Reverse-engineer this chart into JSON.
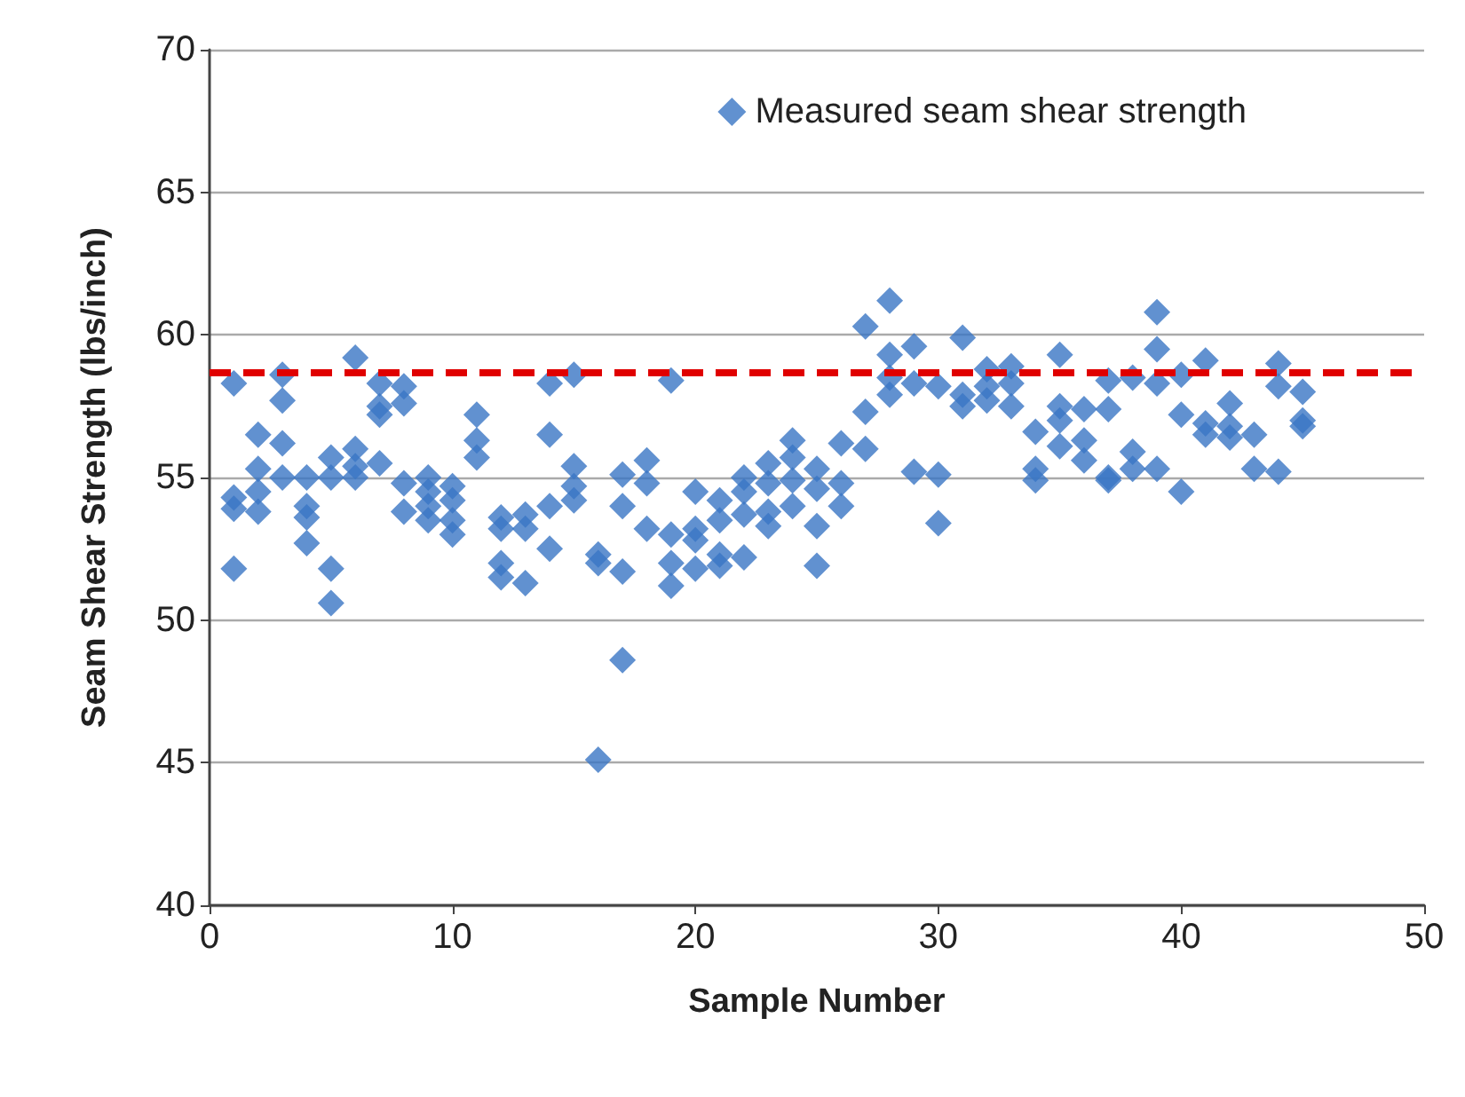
{
  "chart_data": {
    "type": "scatter",
    "xlabel": "Sample Number",
    "ylabel": "Seam Shear Strength (lbs/inch)",
    "xlim": [
      0,
      50
    ],
    "xticks": [
      0,
      10,
      20,
      30,
      40,
      50
    ],
    "ylim": [
      40,
      70
    ],
    "yticks": [
      40,
      45,
      50,
      55,
      60,
      65,
      70
    ],
    "grid": "y",
    "legend": "top right",
    "marker": "diamond",
    "series": [
      {
        "name": "Measured seam shear strength",
        "color": "#3a75c4",
        "x": [
          1,
          1,
          1,
          1,
          2,
          2,
          2,
          2,
          3,
          3,
          3,
          3,
          4,
          4,
          4,
          4,
          5,
          5,
          5,
          5,
          6,
          6,
          6,
          6,
          7,
          7,
          7,
          7,
          8,
          8,
          8,
          8,
          9,
          9,
          9,
          9,
          10,
          10,
          10,
          10,
          11,
          11,
          11,
          12,
          12,
          12,
          12,
          13,
          13,
          13,
          14,
          14,
          14,
          14,
          15,
          15,
          15,
          15,
          16,
          16,
          16,
          17,
          17,
          17,
          17,
          18,
          18,
          18,
          19,
          19,
          19,
          19,
          20,
          20,
          20,
          20,
          21,
          21,
          21,
          21,
          22,
          22,
          22,
          22,
          23,
          23,
          23,
          23,
          24,
          24,
          24,
          24,
          25,
          25,
          25,
          25,
          26,
          26,
          26,
          27,
          27,
          27,
          28,
          28,
          28,
          28,
          29,
          29,
          29,
          30,
          30,
          30,
          31,
          31,
          31,
          32,
          32,
          32,
          33,
          33,
          33,
          34,
          34,
          34,
          35,
          35,
          35,
          35,
          36,
          36,
          36,
          37,
          37,
          37,
          37,
          38,
          38,
          38,
          39,
          39,
          39,
          39,
          40,
          40,
          40,
          41,
          41,
          41,
          42,
          42,
          42,
          43,
          43,
          44,
          44,
          44,
          45,
          45,
          45
        ],
        "values": [
          58.3,
          54.3,
          53.9,
          51.8,
          56.5,
          55.3,
          54.5,
          53.8,
          58.6,
          57.7,
          56.2,
          55.0,
          55.0,
          54.0,
          53.6,
          52.7,
          55.7,
          55.0,
          51.8,
          50.6,
          59.2,
          56.0,
          55.4,
          55.0,
          58.3,
          57.5,
          57.2,
          55.5,
          58.2,
          57.6,
          54.8,
          53.8,
          55.0,
          54.5,
          54.0,
          53.5,
          54.7,
          54.2,
          53.5,
          53.0,
          57.2,
          56.3,
          55.7,
          53.6,
          53.2,
          52.0,
          51.5,
          53.7,
          53.2,
          51.3,
          58.3,
          56.5,
          54.0,
          52.5,
          58.6,
          55.4,
          54.7,
          54.2,
          52.3,
          52.0,
          45.1,
          55.1,
          54.0,
          51.7,
          48.6,
          55.6,
          54.8,
          53.2,
          58.4,
          53.0,
          52.0,
          51.2,
          54.5,
          53.2,
          52.8,
          51.8,
          54.2,
          53.5,
          52.3,
          51.9,
          55.0,
          54.5,
          53.7,
          52.2,
          55.5,
          54.8,
          53.8,
          53.3,
          56.3,
          55.7,
          54.9,
          54.0,
          55.3,
          54.6,
          53.3,
          51.9,
          56.2,
          54.8,
          54.0,
          60.3,
          57.3,
          56.0,
          61.2,
          59.3,
          58.5,
          57.9,
          59.6,
          58.3,
          55.2,
          58.2,
          55.1,
          53.4,
          59.9,
          57.9,
          57.5,
          58.8,
          58.2,
          57.7,
          58.9,
          58.3,
          57.5,
          56.6,
          55.3,
          54.9,
          59.3,
          57.5,
          57.0,
          56.1,
          57.4,
          56.3,
          55.6,
          58.4,
          57.4,
          55.0,
          54.9,
          58.5,
          55.9,
          55.3,
          60.8,
          59.5,
          58.3,
          55.3,
          58.6,
          57.2,
          54.5,
          59.1,
          56.9,
          56.5,
          57.6,
          56.8,
          56.4,
          56.5,
          55.3,
          59.0,
          58.2,
          55.2,
          58.0,
          57.0,
          56.8
        ]
      }
    ],
    "ref_lines": [
      {
        "axis": "y",
        "value": 58.7,
        "color": "#e00000",
        "line_style": "dashed"
      }
    ]
  }
}
